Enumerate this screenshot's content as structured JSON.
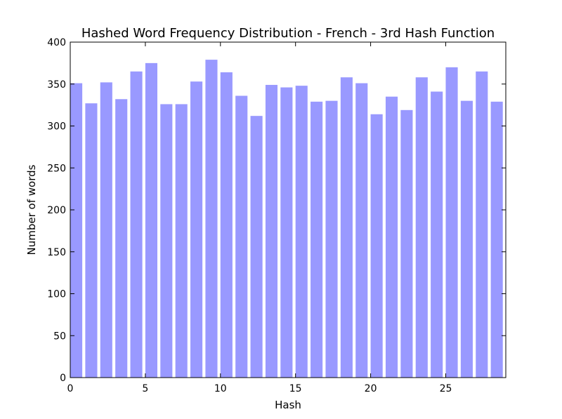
{
  "chart_data": {
    "type": "bar",
    "title": "Hashed Word Frequency Distribution - French - 3rd Hash Function",
    "xlabel": "Hash",
    "ylabel": "Number of words",
    "x": [
      0,
      1,
      2,
      3,
      4,
      5,
      6,
      7,
      8,
      9,
      10,
      11,
      12,
      13,
      14,
      15,
      16,
      17,
      18,
      19,
      20,
      21,
      22,
      23,
      24,
      25,
      26,
      27,
      28
    ],
    "values": [
      351,
      327,
      352,
      332,
      365,
      375,
      326,
      326,
      353,
      379,
      364,
      336,
      312,
      349,
      346,
      348,
      329,
      330,
      358,
      351,
      314,
      335,
      319,
      358,
      341,
      370,
      330,
      365,
      329
    ],
    "xlim": [
      0,
      29
    ],
    "ylim": [
      0,
      400
    ],
    "xticks": [
      "0",
      "5",
      "10",
      "15",
      "20",
      "25"
    ],
    "yticks": [
      "0",
      "50",
      "100",
      "150",
      "200",
      "250",
      "300",
      "350",
      "400"
    ],
    "bar_color": "#9999ff",
    "grid": false,
    "legend": "none"
  }
}
